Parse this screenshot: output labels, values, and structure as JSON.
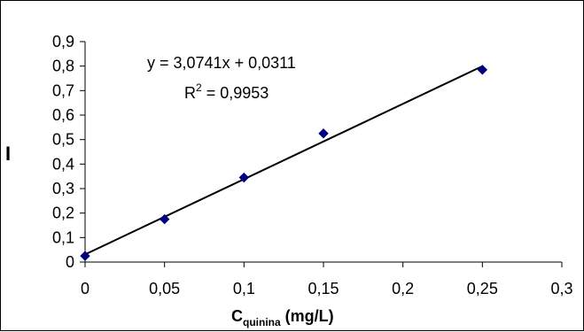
{
  "chart_data": {
    "type": "scatter",
    "xlabel": {
      "main": "C",
      "sub": "quinina",
      "unit": " (mg/L)"
    },
    "ylabel": "I",
    "xlim": [
      0,
      0.3
    ],
    "ylim": [
      0,
      0.9
    ],
    "x_ticks": [
      "0",
      "0,05",
      "0,1",
      "0,15",
      "0,2",
      "0,25",
      "0,3"
    ],
    "y_ticks": [
      "0",
      "0,1",
      "0,2",
      "0,3",
      "0,4",
      "0,5",
      "0,6",
      "0,7",
      "0,8",
      "0,9"
    ],
    "grid": false,
    "series": [
      {
        "marker": "diamond",
        "color": "#000080",
        "points": [
          {
            "x": 0,
            "y": 0.025
          },
          {
            "x": 0.05,
            "y": 0.175
          },
          {
            "x": 0.1,
            "y": 0.345
          },
          {
            "x": 0.15,
            "y": 0.525
          },
          {
            "x": 0.25,
            "y": 0.785
          }
        ]
      }
    ],
    "trendline": {
      "slope": 3.0741,
      "intercept": 0.0311,
      "x_range": [
        0,
        0.25
      ],
      "color": "#000000",
      "equation": "y = 3,0741x + 0,0311",
      "r2_label": "R",
      "r2_sup": "2",
      "r2_value": " = 0,9953"
    }
  }
}
